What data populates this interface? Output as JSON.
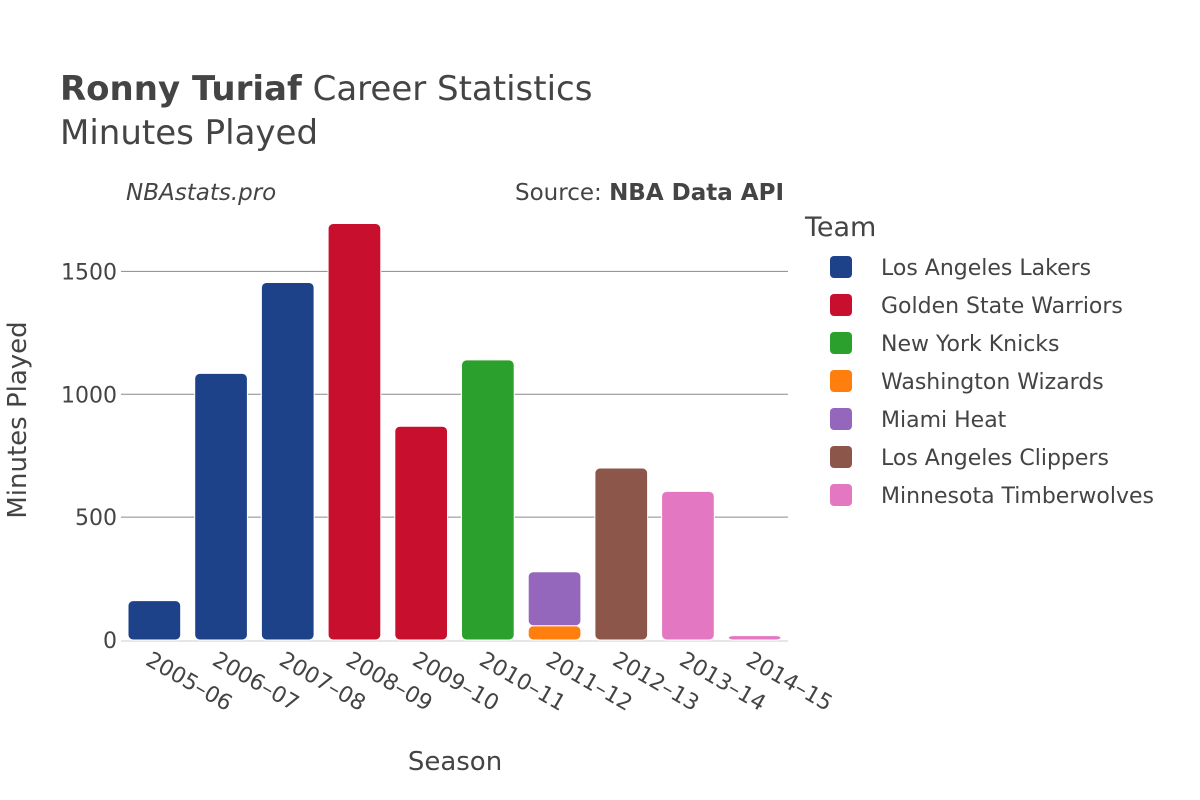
{
  "title": {
    "player": "Ronny Turiaf",
    "rest": "Career Statistics",
    "subtitle": "Minutes Played"
  },
  "watermark": "NBAstats.pro",
  "source": {
    "prefix": "Source: ",
    "name": "NBA Data API"
  },
  "legend": {
    "title": "Team",
    "items": [
      {
        "name": "Los Angeles Lakers",
        "color": "#1d428a"
      },
      {
        "name": "Golden State Warriors",
        "color": "#c8102e"
      },
      {
        "name": "New York Knicks",
        "color": "#2ca02c"
      },
      {
        "name": "Washington Wizards",
        "color": "#ff7f0e"
      },
      {
        "name": "Miami Heat",
        "color": "#9467bd"
      },
      {
        "name": "Los Angeles Clippers",
        "color": "#8c564b"
      },
      {
        "name": "Minnesota Timberwolves",
        "color": "#e377c2"
      }
    ]
  },
  "chart_data": {
    "type": "bar",
    "stacked": true,
    "xlabel": "Season",
    "ylabel": "Minutes Played",
    "ylim": [
      0,
      1750
    ],
    "yticks": [
      0,
      500,
      1000,
      1500
    ],
    "grid": true,
    "legend_position": "right",
    "categories": [
      "2005–06",
      "2006–07",
      "2007–08",
      "2008–09",
      "2009–10",
      "2010–11",
      "2011–12",
      "2012–13",
      "2013–14",
      "2014–15"
    ],
    "series": [
      {
        "name": "Los Angeles Lakers",
        "values": [
          160,
          1085,
          1455,
          0,
          0,
          0,
          0,
          0,
          0,
          0
        ]
      },
      {
        "name": "Golden State Warriors",
        "values": [
          0,
          0,
          0,
          1695,
          870,
          0,
          0,
          0,
          0,
          0
        ]
      },
      {
        "name": "New York Knicks",
        "values": [
          0,
          0,
          0,
          0,
          0,
          1140,
          0,
          0,
          0,
          0
        ]
      },
      {
        "name": "Washington Wizards",
        "values": [
          0,
          0,
          0,
          0,
          0,
          0,
          58,
          0,
          0,
          0
        ]
      },
      {
        "name": "Miami Heat",
        "values": [
          0,
          0,
          0,
          0,
          0,
          0,
          220,
          0,
          0,
          0
        ]
      },
      {
        "name": "Los Angeles Clippers",
        "values": [
          0,
          0,
          0,
          0,
          0,
          0,
          0,
          700,
          0,
          0
        ]
      },
      {
        "name": "Minnesota Timberwolves",
        "values": [
          0,
          0,
          0,
          0,
          0,
          0,
          0,
          0,
          605,
          18
        ]
      }
    ]
  }
}
